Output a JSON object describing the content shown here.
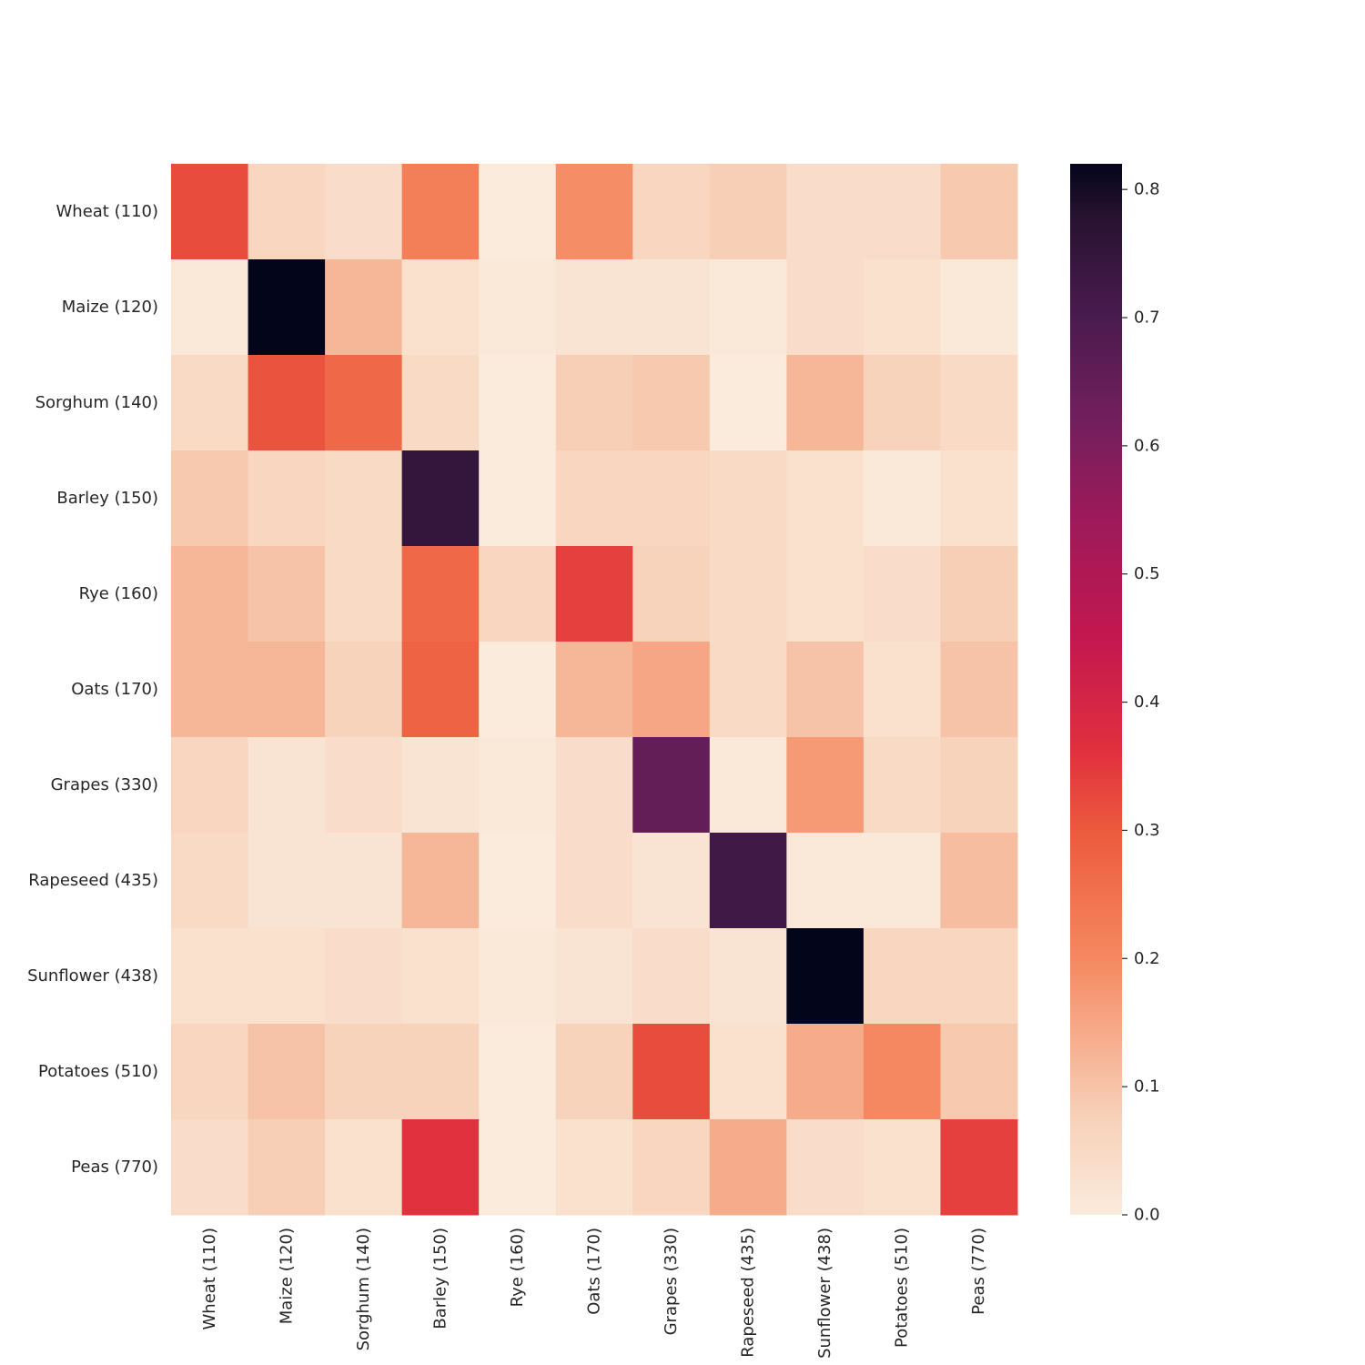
{
  "chart_data": {
    "type": "heatmap",
    "title": "",
    "xlabel": "",
    "ylabel": "",
    "x_categories": [
      "Wheat (110)",
      "Maize (120)",
      "Sorghum (140)",
      "Barley (150)",
      "Rye (160)",
      "Oats (170)",
      "Grapes (330)",
      "Rapeseed (435)",
      "Sunflower (438)",
      "Potatoes (510)",
      "Peas (770)"
    ],
    "y_categories": [
      "Wheat (110)",
      "Maize (120)",
      "Sorghum (140)",
      "Barley (150)",
      "Rye (160)",
      "Oats (170)",
      "Grapes (330)",
      "Rapeseed (435)",
      "Sunflower (438)",
      "Potatoes (510)",
      "Peas (770)"
    ],
    "values": [
      [
        0.32,
        0.06,
        0.04,
        0.22,
        0.0,
        0.19,
        0.06,
        0.08,
        0.04,
        0.04,
        0.09
      ],
      [
        0.01,
        0.82,
        0.12,
        0.03,
        0.01,
        0.02,
        0.02,
        0.01,
        0.04,
        0.03,
        0.01
      ],
      [
        0.05,
        0.31,
        0.27,
        0.05,
        0.0,
        0.08,
        0.09,
        0.0,
        0.12,
        0.07,
        0.05
      ],
      [
        0.09,
        0.06,
        0.05,
        0.75,
        0.0,
        0.06,
        0.06,
        0.05,
        0.03,
        0.01,
        0.03
      ],
      [
        0.12,
        0.1,
        0.05,
        0.27,
        0.06,
        0.34,
        0.07,
        0.05,
        0.03,
        0.04,
        0.08
      ],
      [
        0.12,
        0.12,
        0.07,
        0.28,
        0.0,
        0.12,
        0.15,
        0.05,
        0.1,
        0.03,
        0.1
      ],
      [
        0.06,
        0.02,
        0.04,
        0.02,
        0.01,
        0.04,
        0.65,
        0.01,
        0.17,
        0.05,
        0.07
      ],
      [
        0.05,
        0.02,
        0.02,
        0.12,
        0.0,
        0.04,
        0.02,
        0.72,
        0.01,
        0.01,
        0.11
      ],
      [
        0.03,
        0.03,
        0.04,
        0.03,
        0.01,
        0.02,
        0.04,
        0.02,
        0.82,
        0.06,
        0.06
      ],
      [
        0.06,
        0.1,
        0.07,
        0.07,
        0.0,
        0.07,
        0.32,
        0.03,
        0.14,
        0.2,
        0.09
      ],
      [
        0.04,
        0.08,
        0.03,
        0.36,
        0.0,
        0.03,
        0.06,
        0.14,
        0.04,
        0.03,
        0.34
      ]
    ],
    "colorbar": {
      "min": 0.0,
      "max": 0.82,
      "ticks": [
        0.0,
        0.1,
        0.2,
        0.3,
        0.4,
        0.5,
        0.6,
        0.7,
        0.8
      ],
      "tick_labels": [
        "0.0",
        "0.1",
        "0.2",
        "0.3",
        "0.4",
        "0.5",
        "0.6",
        "0.7",
        "0.8"
      ]
    },
    "colormap_stops": [
      [
        0.0,
        "#faebdd"
      ],
      [
        0.08,
        "#f7cfb6"
      ],
      [
        0.2,
        "#f58860"
      ],
      [
        0.3,
        "#ec5a3d"
      ],
      [
        0.36,
        "#e1313e"
      ],
      [
        0.45,
        "#c3174f"
      ],
      [
        0.55,
        "#9a1a5b"
      ],
      [
        0.62,
        "#721f5d"
      ],
      [
        0.7,
        "#4a1b4e"
      ],
      [
        0.78,
        "#261230"
      ],
      [
        0.82,
        "#03051a"
      ]
    ],
    "grid": false,
    "legend": "colorbar-right"
  }
}
